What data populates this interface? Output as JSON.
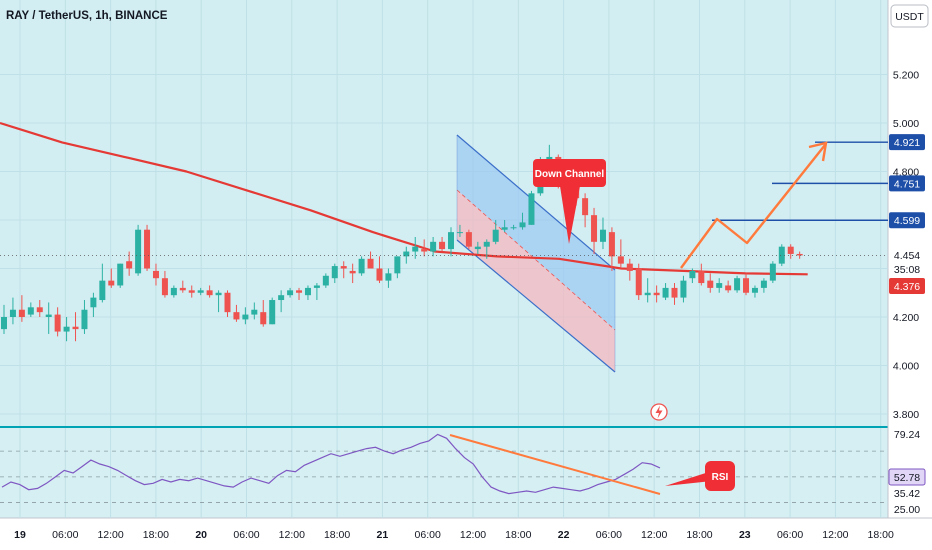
{
  "header": {
    "title": "RAY / TetherUS, 1h, BINANCE",
    "currency": "USDT"
  },
  "colors": {
    "bg_main": "#d3eef2",
    "bg_rsi": "#d6eff3",
    "grid": "#bfe0e6",
    "up": "#26a69a",
    "up_fill": "#2bb1a3",
    "down": "#ef5350",
    "ma": "#e53935",
    "rsi": "#7e57c2",
    "level": "#1e4fa8",
    "arrow": "#ff7a3c",
    "channel_blue": "#3b6fc9",
    "channel_fill_blue": "#9ec9f2",
    "channel_fill_red": "#f5b8c0"
  },
  "chart_data": [
    {
      "type": "candlestick",
      "title": "RAY / TetherUS, 1h, BINANCE",
      "ylim": [
        3.76,
        5.4
      ],
      "yticks": [
        3.8,
        4.0,
        4.2,
        4.4,
        4.6,
        4.8,
        5.0,
        5.2
      ],
      "xticks": [
        "19",
        "06:00",
        "12:00",
        "18:00",
        "20",
        "06:00",
        "12:00",
        "18:00",
        "21",
        "06:00",
        "12:00",
        "18:00",
        "22",
        "06:00",
        "12:00",
        "18:00",
        "23",
        "06:00",
        "12:00",
        "18:00"
      ],
      "bold_xticks": [
        "19",
        "20",
        "21",
        "22",
        "23"
      ],
      "x_start": "19 00:00",
      "candle_interval": "1h",
      "candles": [
        {
          "o": 4.15,
          "h": 4.25,
          "l": 4.13,
          "c": 4.2
        },
        {
          "o": 4.2,
          "h": 4.28,
          "l": 4.17,
          "c": 4.23
        },
        {
          "o": 4.23,
          "h": 4.29,
          "l": 4.18,
          "c": 4.2
        },
        {
          "o": 4.21,
          "h": 4.26,
          "l": 4.2,
          "c": 4.24
        },
        {
          "o": 4.24,
          "h": 4.27,
          "l": 4.2,
          "c": 4.22
        },
        {
          "o": 4.2,
          "h": 4.26,
          "l": 4.13,
          "c": 4.21
        },
        {
          "o": 4.21,
          "h": 4.24,
          "l": 4.12,
          "c": 4.14
        },
        {
          "o": 4.14,
          "h": 4.2,
          "l": 4.1,
          "c": 4.16
        },
        {
          "o": 4.16,
          "h": 4.22,
          "l": 4.1,
          "c": 4.15
        },
        {
          "o": 4.15,
          "h": 4.27,
          "l": 4.13,
          "c": 4.23
        },
        {
          "o": 4.24,
          "h": 4.3,
          "l": 4.2,
          "c": 4.28
        },
        {
          "o": 4.27,
          "h": 4.42,
          "l": 4.26,
          "c": 4.35
        },
        {
          "o": 4.35,
          "h": 4.4,
          "l": 4.32,
          "c": 4.33
        },
        {
          "o": 4.33,
          "h": 4.42,
          "l": 4.32,
          "c": 4.42
        },
        {
          "o": 4.43,
          "h": 4.47,
          "l": 4.37,
          "c": 4.4
        },
        {
          "o": 4.38,
          "h": 4.58,
          "l": 4.37,
          "c": 4.56
        },
        {
          "o": 4.56,
          "h": 4.58,
          "l": 4.39,
          "c": 4.4
        },
        {
          "o": 4.39,
          "h": 4.42,
          "l": 4.33,
          "c": 4.36
        },
        {
          "o": 4.36,
          "h": 4.39,
          "l": 4.28,
          "c": 4.29
        },
        {
          "o": 4.29,
          "h": 4.33,
          "l": 4.28,
          "c": 4.32
        },
        {
          "o": 4.32,
          "h": 4.35,
          "l": 4.3,
          "c": 4.31
        },
        {
          "o": 4.31,
          "h": 4.33,
          "l": 4.28,
          "c": 4.3
        },
        {
          "o": 4.3,
          "h": 4.32,
          "l": 4.29,
          "c": 4.31
        },
        {
          "o": 4.31,
          "h": 4.33,
          "l": 4.28,
          "c": 4.29
        },
        {
          "o": 4.29,
          "h": 4.31,
          "l": 4.22,
          "c": 4.3
        },
        {
          "o": 4.3,
          "h": 4.31,
          "l": 4.2,
          "c": 4.22
        },
        {
          "o": 4.22,
          "h": 4.25,
          "l": 4.18,
          "c": 4.19
        },
        {
          "o": 4.19,
          "h": 4.24,
          "l": 4.17,
          "c": 4.21
        },
        {
          "o": 4.21,
          "h": 4.26,
          "l": 4.19,
          "c": 4.23
        },
        {
          "o": 4.22,
          "h": 4.27,
          "l": 4.16,
          "c": 4.17
        },
        {
          "o": 4.17,
          "h": 4.28,
          "l": 4.17,
          "c": 4.27
        },
        {
          "o": 4.27,
          "h": 4.31,
          "l": 4.22,
          "c": 4.29
        },
        {
          "o": 4.29,
          "h": 4.32,
          "l": 4.28,
          "c": 4.31
        },
        {
          "o": 4.31,
          "h": 4.32,
          "l": 4.27,
          "c": 4.3
        },
        {
          "o": 4.29,
          "h": 4.33,
          "l": 4.27,
          "c": 4.32
        },
        {
          "o": 4.32,
          "h": 4.34,
          "l": 4.27,
          "c": 4.33
        },
        {
          "o": 4.33,
          "h": 4.38,
          "l": 4.32,
          "c": 4.37
        },
        {
          "o": 4.36,
          "h": 4.42,
          "l": 4.34,
          "c": 4.41
        },
        {
          "o": 4.41,
          "h": 4.43,
          "l": 4.36,
          "c": 4.4
        },
        {
          "o": 4.39,
          "h": 4.42,
          "l": 4.34,
          "c": 4.38
        },
        {
          "o": 4.38,
          "h": 4.45,
          "l": 4.37,
          "c": 4.44
        },
        {
          "o": 4.44,
          "h": 4.47,
          "l": 4.4,
          "c": 4.4
        },
        {
          "o": 4.4,
          "h": 4.45,
          "l": 4.34,
          "c": 4.35
        },
        {
          "o": 4.35,
          "h": 4.4,
          "l": 4.32,
          "c": 4.38
        },
        {
          "o": 4.38,
          "h": 4.45,
          "l": 4.36,
          "c": 4.45
        },
        {
          "o": 4.45,
          "h": 4.49,
          "l": 4.42,
          "c": 4.47
        },
        {
          "o": 4.47,
          "h": 4.53,
          "l": 4.44,
          "c": 4.49
        },
        {
          "o": 4.48,
          "h": 4.52,
          "l": 4.45,
          "c": 4.47
        },
        {
          "o": 4.47,
          "h": 4.53,
          "l": 4.45,
          "c": 4.51
        },
        {
          "o": 4.51,
          "h": 4.53,
          "l": 4.47,
          "c": 4.48
        },
        {
          "o": 4.48,
          "h": 4.57,
          "l": 4.45,
          "c": 4.55
        },
        {
          "o": 4.55,
          "h": 4.58,
          "l": 4.53,
          "c": 4.55
        },
        {
          "o": 4.55,
          "h": 4.56,
          "l": 4.48,
          "c": 4.49
        },
        {
          "o": 4.48,
          "h": 4.51,
          "l": 4.46,
          "c": 4.49
        },
        {
          "o": 4.49,
          "h": 4.52,
          "l": 4.44,
          "c": 4.51
        },
        {
          "o": 4.51,
          "h": 4.6,
          "l": 4.5,
          "c": 4.56
        },
        {
          "o": 4.56,
          "h": 4.6,
          "l": 4.55,
          "c": 4.57
        },
        {
          "o": 4.57,
          "h": 4.58,
          "l": 4.56,
          "c": 4.57
        },
        {
          "o": 4.57,
          "h": 4.63,
          "l": 4.56,
          "c": 4.59
        },
        {
          "o": 4.58,
          "h": 4.72,
          "l": 4.58,
          "c": 4.71
        },
        {
          "o": 4.71,
          "h": 4.86,
          "l": 4.7,
          "c": 4.81
        },
        {
          "o": 4.83,
          "h": 4.91,
          "l": 4.8,
          "c": 4.86
        },
        {
          "o": 4.86,
          "h": 4.87,
          "l": 4.73,
          "c": 4.76
        },
        {
          "o": 4.76,
          "h": 4.83,
          "l": 4.73,
          "c": 4.8
        },
        {
          "o": 4.81,
          "h": 4.85,
          "l": 4.66,
          "c": 4.69
        },
        {
          "o": 4.69,
          "h": 4.71,
          "l": 4.57,
          "c": 4.62
        },
        {
          "o": 4.62,
          "h": 4.65,
          "l": 4.46,
          "c": 4.51
        },
        {
          "o": 4.51,
          "h": 4.61,
          "l": 4.48,
          "c": 4.56
        },
        {
          "o": 4.55,
          "h": 4.57,
          "l": 4.39,
          "c": 4.45
        },
        {
          "o": 4.45,
          "h": 4.52,
          "l": 4.4,
          "c": 4.42
        },
        {
          "o": 4.42,
          "h": 4.44,
          "l": 4.35,
          "c": 4.39
        },
        {
          "o": 4.4,
          "h": 4.42,
          "l": 4.27,
          "c": 4.29
        },
        {
          "o": 4.29,
          "h": 4.36,
          "l": 4.26,
          "c": 4.3
        },
        {
          "o": 4.3,
          "h": 4.33,
          "l": 4.26,
          "c": 4.29
        },
        {
          "o": 4.28,
          "h": 4.34,
          "l": 4.27,
          "c": 4.32
        },
        {
          "o": 4.32,
          "h": 4.34,
          "l": 4.25,
          "c": 4.28
        },
        {
          "o": 4.28,
          "h": 4.37,
          "l": 4.26,
          "c": 4.35
        },
        {
          "o": 4.36,
          "h": 4.4,
          "l": 4.34,
          "c": 4.39
        },
        {
          "o": 4.39,
          "h": 4.42,
          "l": 4.33,
          "c": 4.34
        },
        {
          "o": 4.35,
          "h": 4.38,
          "l": 4.3,
          "c": 4.32
        },
        {
          "o": 4.32,
          "h": 4.36,
          "l": 4.3,
          "c": 4.34
        },
        {
          "o": 4.33,
          "h": 4.35,
          "l": 4.3,
          "c": 4.31
        },
        {
          "o": 4.31,
          "h": 4.37,
          "l": 4.3,
          "c": 4.36
        },
        {
          "o": 4.36,
          "h": 4.38,
          "l": 4.29,
          "c": 4.3
        },
        {
          "o": 4.3,
          "h": 4.33,
          "l": 4.28,
          "c": 4.32
        },
        {
          "o": 4.32,
          "h": 4.36,
          "l": 4.3,
          "c": 4.35
        },
        {
          "o": 4.35,
          "h": 4.43,
          "l": 4.34,
          "c": 4.42
        },
        {
          "o": 4.42,
          "h": 4.5,
          "l": 4.41,
          "c": 4.49
        },
        {
          "o": 4.49,
          "h": 4.5,
          "l": 4.44,
          "c": 4.46
        },
        {
          "o": 4.46,
          "h": 4.47,
          "l": 4.44,
          "c": 4.454
        }
      ],
      "series": [
        {
          "type": "line",
          "values": [
            5.0,
            4.92,
            4.86,
            4.8,
            4.72,
            4.64,
            4.55,
            4.47,
            4.45,
            4.44,
            4.4,
            4.39,
            4.38,
            4.376
          ]
        }
      ],
      "price_labels": {
        "levels": [
          "4.921",
          "4.751",
          "4.599"
        ],
        "last_price": "4.454",
        "countdown": "35:08",
        "ma_value": "4.376"
      },
      "annotations": {
        "channel_label": "Down Channel",
        "horizontal_levels": [
          4.921,
          4.751,
          4.599
        ]
      }
    },
    {
      "type": "line",
      "title": "RSI",
      "ylim": [
        18,
        88
      ],
      "yticks": [
        79.24,
        52.78,
        35.42,
        25.0
      ],
      "tick_labels": [
        "79.24",
        "52.78",
        "35.42",
        "25.00"
      ],
      "dashed_levels": [
        70,
        50,
        30
      ],
      "series": [
        {
          "values": [
            42,
            46,
            44,
            40,
            41,
            45,
            50,
            55,
            53,
            58,
            63,
            60,
            58,
            55,
            51,
            47,
            44,
            45,
            48,
            46,
            48,
            47,
            49,
            47,
            45,
            43,
            42,
            46,
            49,
            47,
            45,
            51,
            55,
            54,
            59,
            62,
            65,
            68,
            66,
            68,
            70,
            72,
            73,
            70,
            68,
            71,
            73,
            76,
            78,
            83,
            80,
            72,
            65,
            60,
            50,
            42,
            39,
            37,
            38,
            39,
            38,
            40,
            42,
            41,
            40,
            39,
            41,
            44,
            46,
            48,
            52,
            56,
            61,
            60,
            57
          ]
        }
      ]
    }
  ]
}
